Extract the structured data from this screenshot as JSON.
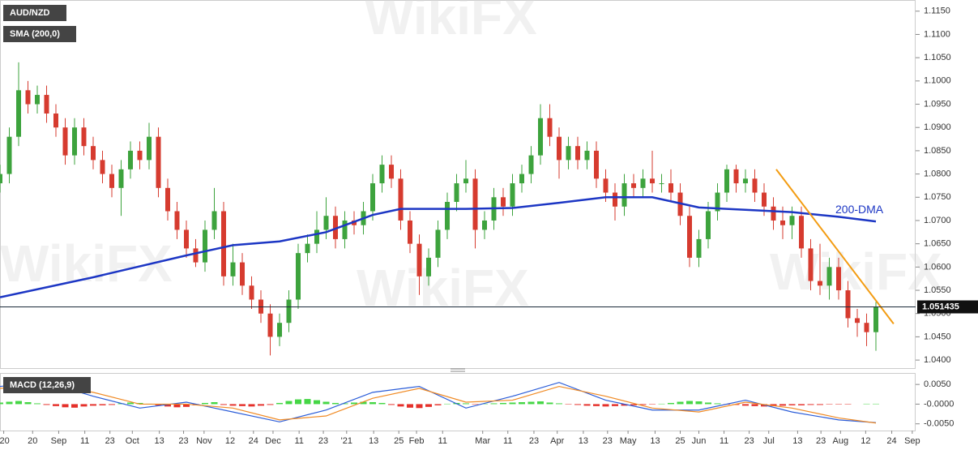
{
  "chart_data": {
    "type": "candlestick",
    "title": "AUD/NZD",
    "indicator_label": "SMA (200,0)",
    "watermark": "WikiFX",
    "up_color": "#3da33d",
    "down_color": "#d63b2f",
    "open": [
      1.078,
      1.08,
      1.088,
      1.098,
      1.095,
      1.097,
      1.093,
      1.09,
      1.084,
      1.09,
      1.086,
      1.083,
      1.08,
      1.077,
      1.081,
      1.085,
      1.083,
      1.088,
      1.077,
      1.072,
      1.068,
      1.064,
      1.061,
      1.068,
      1.072,
      1.058,
      1.061,
      1.056,
      1.053,
      1.05,
      1.045,
      1.048,
      1.053,
      1.063,
      1.065,
      1.068,
      1.071,
      1.066,
      1.07,
      1.069,
      1.072,
      1.078,
      1.082,
      1.079,
      1.07,
      1.065,
      1.058,
      1.062,
      1.068,
      1.074,
      1.078,
      1.079,
      1.068,
      1.07,
      1.075,
      1.073,
      1.078,
      1.08,
      1.084,
      1.092,
      1.088,
      1.083,
      1.086,
      1.083,
      1.085,
      1.079,
      1.076,
      1.073,
      1.078,
      1.077,
      1.079,
      1.078,
      1.078,
      1.076,
      1.071,
      1.062,
      1.066,
      1.072,
      1.076,
      1.081,
      1.078,
      1.079,
      1.076,
      1.073,
      1.07,
      1.069,
      1.071,
      1.064,
      1.057,
      1.056,
      1.06,
      1.055,
      1.049,
      1.048,
      1.046
    ],
    "high": [
      1.082,
      1.09,
      1.104,
      1.1,
      1.099,
      1.099,
      1.095,
      1.092,
      1.092,
      1.092,
      1.088,
      1.085,
      1.082,
      1.083,
      1.087,
      1.087,
      1.091,
      1.09,
      1.079,
      1.074,
      1.07,
      1.066,
      1.07,
      1.077,
      1.074,
      1.065,
      1.063,
      1.058,
      1.055,
      1.052,
      1.05,
      1.055,
      1.065,
      1.067,
      1.072,
      1.075,
      1.073,
      1.072,
      1.072,
      1.074,
      1.08,
      1.084,
      1.084,
      1.081,
      1.072,
      1.067,
      1.064,
      1.07,
      1.076,
      1.08,
      1.083,
      1.081,
      1.072,
      1.077,
      1.077,
      1.08,
      1.082,
      1.086,
      1.095,
      1.095,
      1.09,
      1.088,
      1.088,
      1.087,
      1.087,
      1.081,
      1.078,
      1.08,
      1.08,
      1.081,
      1.085,
      1.08,
      1.081,
      1.078,
      1.073,
      1.068,
      1.074,
      1.078,
      1.082,
      1.082,
      1.081,
      1.081,
      1.078,
      1.075,
      1.073,
      1.073,
      1.073,
      1.066,
      1.065,
      1.062,
      1.062,
      1.057,
      1.051,
      1.05,
      1.0525
    ],
    "low": [
      1.076,
      1.078,
      1.086,
      1.093,
      1.093,
      1.091,
      1.088,
      1.082,
      1.082,
      1.084,
      1.081,
      1.078,
      1.075,
      1.071,
      1.079,
      1.081,
      1.081,
      1.075,
      1.07,
      1.066,
      1.062,
      1.06,
      1.059,
      1.066,
      1.056,
      1.056,
      1.054,
      1.051,
      1.048,
      1.041,
      1.043,
      1.046,
      1.051,
      1.061,
      1.063,
      1.066,
      1.064,
      1.064,
      1.067,
      1.067,
      1.07,
      1.076,
      1.077,
      1.068,
      1.063,
      1.054,
      1.056,
      1.06,
      1.066,
      1.072,
      1.076,
      1.064,
      1.066,
      1.068,
      1.071,
      1.071,
      1.076,
      1.078,
      1.082,
      1.086,
      1.079,
      1.081,
      1.081,
      1.081,
      1.077,
      1.074,
      1.07,
      1.071,
      1.075,
      1.075,
      1.076,
      1.076,
      1.074,
      1.069,
      1.06,
      1.06,
      1.064,
      1.07,
      1.074,
      1.076,
      1.076,
      1.074,
      1.071,
      1.068,
      1.066,
      1.066,
      1.062,
      1.055,
      1.054,
      1.053,
      1.053,
      1.047,
      1.045,
      1.043,
      1.042
    ],
    "close": [
      1.08,
      1.088,
      1.098,
      1.095,
      1.097,
      1.093,
      1.09,
      1.084,
      1.09,
      1.086,
      1.083,
      1.08,
      1.077,
      1.081,
      1.085,
      1.083,
      1.088,
      1.077,
      1.072,
      1.068,
      1.064,
      1.061,
      1.068,
      1.072,
      1.058,
      1.061,
      1.056,
      1.053,
      1.05,
      1.045,
      1.048,
      1.053,
      1.063,
      1.065,
      1.068,
      1.071,
      1.066,
      1.07,
      1.069,
      1.072,
      1.078,
      1.082,
      1.079,
      1.07,
      1.065,
      1.058,
      1.062,
      1.068,
      1.074,
      1.078,
      1.079,
      1.068,
      1.07,
      1.075,
      1.073,
      1.078,
      1.08,
      1.084,
      1.092,
      1.088,
      1.083,
      1.086,
      1.083,
      1.085,
      1.079,
      1.076,
      1.073,
      1.078,
      1.077,
      1.079,
      1.078,
      1.078,
      1.076,
      1.071,
      1.062,
      1.066,
      1.072,
      1.076,
      1.081,
      1.078,
      1.079,
      1.076,
      1.073,
      1.07,
      1.069,
      1.071,
      1.064,
      1.057,
      1.056,
      1.06,
      1.055,
      1.049,
      1.048,
      1.046,
      1.051435
    ],
    "last_price": 1.051435,
    "xlim": [
      0,
      98.26
    ],
    "xticks": [
      {
        "value": 0.4,
        "label": "'20"
      },
      {
        "value": 3.5,
        "label": "20"
      },
      {
        "value": 6.3,
        "label": "Sep"
      },
      {
        "value": 9.1,
        "label": "11"
      },
      {
        "value": 11.8,
        "label": "23"
      },
      {
        "value": 14.2,
        "label": "Oct"
      },
      {
        "value": 17.1,
        "label": "13"
      },
      {
        "value": 19.7,
        "label": "23"
      },
      {
        "value": 21.9,
        "label": "Nov"
      },
      {
        "value": 24.7,
        "label": "12"
      },
      {
        "value": 27.2,
        "label": "24"
      },
      {
        "value": 29.3,
        "label": "Dec"
      },
      {
        "value": 32.1,
        "label": "11"
      },
      {
        "value": 34.7,
        "label": "23"
      },
      {
        "value": 37.2,
        "label": "'21"
      },
      {
        "value": 40.1,
        "label": "13"
      },
      {
        "value": 42.8,
        "label": "25"
      },
      {
        "value": 44.7,
        "label": "Feb"
      },
      {
        "value": 47.5,
        "label": "11"
      },
      {
        "value": 51.8,
        "label": "Mar"
      },
      {
        "value": 54.5,
        "label": "11"
      },
      {
        "value": 57.3,
        "label": "23"
      },
      {
        "value": 59.8,
        "label": "Apr"
      },
      {
        "value": 62.6,
        "label": "13"
      },
      {
        "value": 65.2,
        "label": "23"
      },
      {
        "value": 67.4,
        "label": "May"
      },
      {
        "value": 70.3,
        "label": "13"
      },
      {
        "value": 73,
        "label": "25"
      },
      {
        "value": 75,
        "label": "Jun"
      },
      {
        "value": 77.7,
        "label": "11"
      },
      {
        "value": 80.4,
        "label": "23"
      },
      {
        "value": 82.5,
        "label": "Jul"
      },
      {
        "value": 85.6,
        "label": "13"
      },
      {
        "value": 88.1,
        "label": "23"
      },
      {
        "value": 90.2,
        "label": "Aug"
      },
      {
        "value": 92.9,
        "label": "12"
      },
      {
        "value": 95.7,
        "label": "24"
      },
      {
        "value": 97.9,
        "label": "Sep"
      }
    ],
    "ylim": [
      1.0381,
      1.1174
    ],
    "yticks": [
      {
        "value": 1.04,
        "label": "1.0400"
      },
      {
        "value": 1.045,
        "label": "1.0450"
      },
      {
        "value": 1.05,
        "label": "1.0500"
      },
      {
        "value": 1.055,
        "label": "1.0550"
      },
      {
        "value": 1.06,
        "label": "1.0600"
      },
      {
        "value": 1.065,
        "label": "1.0650"
      },
      {
        "value": 1.07,
        "label": "1.0700"
      },
      {
        "value": 1.075,
        "label": "1.0750"
      },
      {
        "value": 1.08,
        "label": "1.0800"
      },
      {
        "value": 1.085,
        "label": "1.0850"
      },
      {
        "value": 1.09,
        "label": "1.0900"
      },
      {
        "value": 1.095,
        "label": "1.0950"
      },
      {
        "value": 1.1,
        "label": "1.1000"
      },
      {
        "value": 1.105,
        "label": "1.1050"
      },
      {
        "value": 1.11,
        "label": "1.1100"
      },
      {
        "value": 1.115,
        "label": "1.1150"
      }
    ],
    "sma": {
      "name": "200-DMA",
      "color": "#1c36c4",
      "x": [
        0,
        10,
        20,
        25,
        30,
        35,
        40,
        43,
        50,
        55,
        60,
        65,
        70,
        75,
        80,
        85,
        90,
        94
      ],
      "values": [
        1.0535,
        1.0578,
        1.0625,
        1.0647,
        1.0655,
        1.0675,
        1.0712,
        1.0725,
        1.0725,
        1.0727,
        1.0738,
        1.075,
        1.075,
        1.0728,
        1.0723,
        1.0718,
        1.0708,
        1.0698
      ]
    },
    "trendline": {
      "color": "#f39c12",
      "x": [
        83.3,
        95.9
      ],
      "values": [
        1.081,
        1.0478
      ]
    },
    "macd": {
      "title": "MACD (12,26,9)",
      "ylim": [
        -0.0065,
        0.0075
      ],
      "yticks": [
        {
          "value": 0.005,
          "label": "0.0050"
        },
        {
          "value": 0,
          "label": "-0.0000"
        },
        {
          "value": -0.005,
          "label": "-0.0050"
        }
      ],
      "up_color": "#45d645",
      "down_color": "#e5302a",
      "macd_color": "#2a5cd8",
      "signal_color": "#f08a24",
      "histogram": [
        0.0004,
        0.0006,
        0.0008,
        0.0005,
        0.0002,
        -0.0002,
        -0.0005,
        -0.0008,
        -0.0009,
        -0.0006,
        -0.0004,
        -0.0003,
        -0.0002,
        0.0002,
        0.0004,
        0.0003,
        0.0001,
        -0.0003,
        -0.0006,
        -0.0008,
        -0.0007,
        -0.0003,
        0.0003,
        0.0005,
        -0.0002,
        -0.0004,
        -0.0005,
        -0.0006,
        -0.0004,
        -0.0002,
        0.0003,
        0.0008,
        0.0012,
        0.0013,
        0.001,
        0.0006,
        0.0003,
        0.0002,
        0.0004,
        0.0006,
        0.0005,
        0.0003,
        -0.0002,
        -0.0006,
        -0.0009,
        -0.001,
        -0.0007,
        -0.0003,
        0.0001,
        0.0003,
        0.0002,
        -0.0001,
        0.0001,
        0.0002,
        0.0003,
        0.0004,
        0.0005,
        0.0006,
        0.0007,
        0.0004,
        0.0002,
        -0.0001,
        -0.0002,
        -0.0004,
        -0.0005,
        -0.0006,
        -0.0005,
        -0.0004,
        -0.0003,
        -0.0002,
        -0.0001,
        0.0001,
        0.0003,
        0.0006,
        0.0008,
        0.0007,
        0.0004,
        0.0002,
        -0.0001,
        -0.0002,
        -0.0004,
        -0.0005,
        -0.0006,
        -0.0005,
        -0.0004,
        -0.0003,
        -0.0003,
        -0.0002,
        -0.0002,
        -0.0001,
        -0.0001,
        -0.0001,
        0.0,
        0.0001,
        0.0001
      ],
      "x": [
        0,
        5,
        10,
        15,
        20,
        25,
        30,
        35,
        40,
        45,
        50,
        55,
        60,
        65,
        70,
        75,
        80,
        85,
        90,
        94
      ],
      "macd": [
        0.0045,
        0.0055,
        0.002,
        -0.001,
        0.0005,
        -0.002,
        -0.0045,
        -0.0015,
        0.003,
        0.0045,
        -0.001,
        0.002,
        0.0055,
        0.001,
        -0.0015,
        -0.0015,
        0.001,
        -0.002,
        -0.004,
        -0.0047
      ],
      "signal": [
        0.004,
        0.005,
        0.003,
        0.0,
        0.0,
        -0.001,
        -0.004,
        -0.003,
        0.0015,
        0.004,
        0.0005,
        0.001,
        0.0045,
        0.002,
        -0.001,
        -0.002,
        0.0005,
        -0.001,
        -0.0035,
        -0.0048
      ]
    }
  }
}
